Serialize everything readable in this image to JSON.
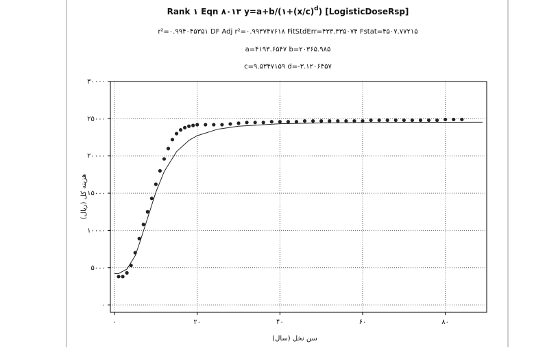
{
  "chart_data": {
    "type": "scatter",
    "title": [
      "Rank ۱  Eqn ۸۰۱۳  y=a+b/(۱+(x/c)",
      "d",
      ") [LogisticDoseRsp]"
    ],
    "subtitle": [
      "r²=۰.۹۹۴۰۴۵۳۵۱  DF Adj r²=۰.۹۹۳۷۴۷۶۱۸  FitStdErr=۴۳۳.۳۳۵۰۷۴  Fstat=۴۵۰۷.۷۷۲۱۵",
      "a=۴۱۹۳.۶۵۴۷ b=۲۰۳۶۵.۹۸۵",
      "c=۹.۵۳۴۷۱۵۹ d=-۳.۱۲۰۶۴۵۷"
    ],
    "x_label": "سن نخل (سال)",
    "y_label": "هزینه کل (ریال)",
    "xlim": [
      -1,
      90
    ],
    "ylim": [
      -1000,
      30000
    ],
    "xticks": [
      {
        "value": 0,
        "label": "۰"
      },
      {
        "value": 20,
        "label": "۲۰"
      },
      {
        "value": 40,
        "label": "۴۰"
      },
      {
        "value": 60,
        "label": "۶۰"
      },
      {
        "value": 80,
        "label": "۸۰"
      }
    ],
    "yticks": [
      {
        "value": 0,
        "label": "۰"
      },
      {
        "value": 5000,
        "label": "۵۰۰۰"
      },
      {
        "value": 10000,
        "label": "۱۰۰۰۰"
      },
      {
        "value": 15000,
        "label": "۱۵۰۰۰"
      },
      {
        "value": 20000,
        "label": "۲۰۰۰۰"
      },
      {
        "value": 25000,
        "label": "۲۵۰۰۰"
      },
      {
        "value": 30000,
        "label": "۳۰۰۰۰"
      }
    ],
    "grid": true,
    "series": [
      {
        "style": "markers",
        "color": "#222222",
        "x": [
          1,
          2,
          3,
          4,
          5,
          6,
          7,
          8,
          9,
          10,
          11,
          12,
          13,
          14,
          15,
          16,
          17,
          18,
          19,
          20,
          22,
          24,
          26,
          28,
          30,
          32,
          34,
          36,
          38,
          40,
          42,
          44,
          46,
          48,
          50,
          52,
          54,
          56,
          58,
          60,
          62,
          64,
          66,
          68,
          70,
          72,
          74,
          76,
          78,
          80,
          82,
          84
        ],
        "values": [
          3800,
          3800,
          4300,
          5300,
          7000,
          8900,
          10800,
          12500,
          14300,
          16200,
          18000,
          19600,
          21000,
          22200,
          23000,
          23500,
          23800,
          24000,
          24100,
          24200,
          24200,
          24200,
          24200,
          24300,
          24400,
          24500,
          24500,
          24500,
          24600,
          24600,
          24600,
          24600,
          24700,
          24700,
          24700,
          24700,
          24700,
          24700,
          24700,
          24700,
          24800,
          24800,
          24800,
          24800,
          24800,
          24800,
          24800,
          24800,
          24800,
          24900,
          24900,
          24900
        ]
      },
      {
        "style": "line",
        "color": "#222222",
        "x": [
          0,
          1,
          3,
          5,
          6,
          8,
          10,
          12,
          15,
          18,
          20,
          25,
          30,
          40,
          50,
          60,
          75,
          89
        ],
        "values": [
          4193,
          4211,
          4800,
          6598,
          8200,
          11653,
          15136,
          17889,
          20577,
          22100,
          22725,
          23600,
          24000,
          24329,
          24440,
          24494,
          24525,
          24539
        ]
      }
    ]
  }
}
